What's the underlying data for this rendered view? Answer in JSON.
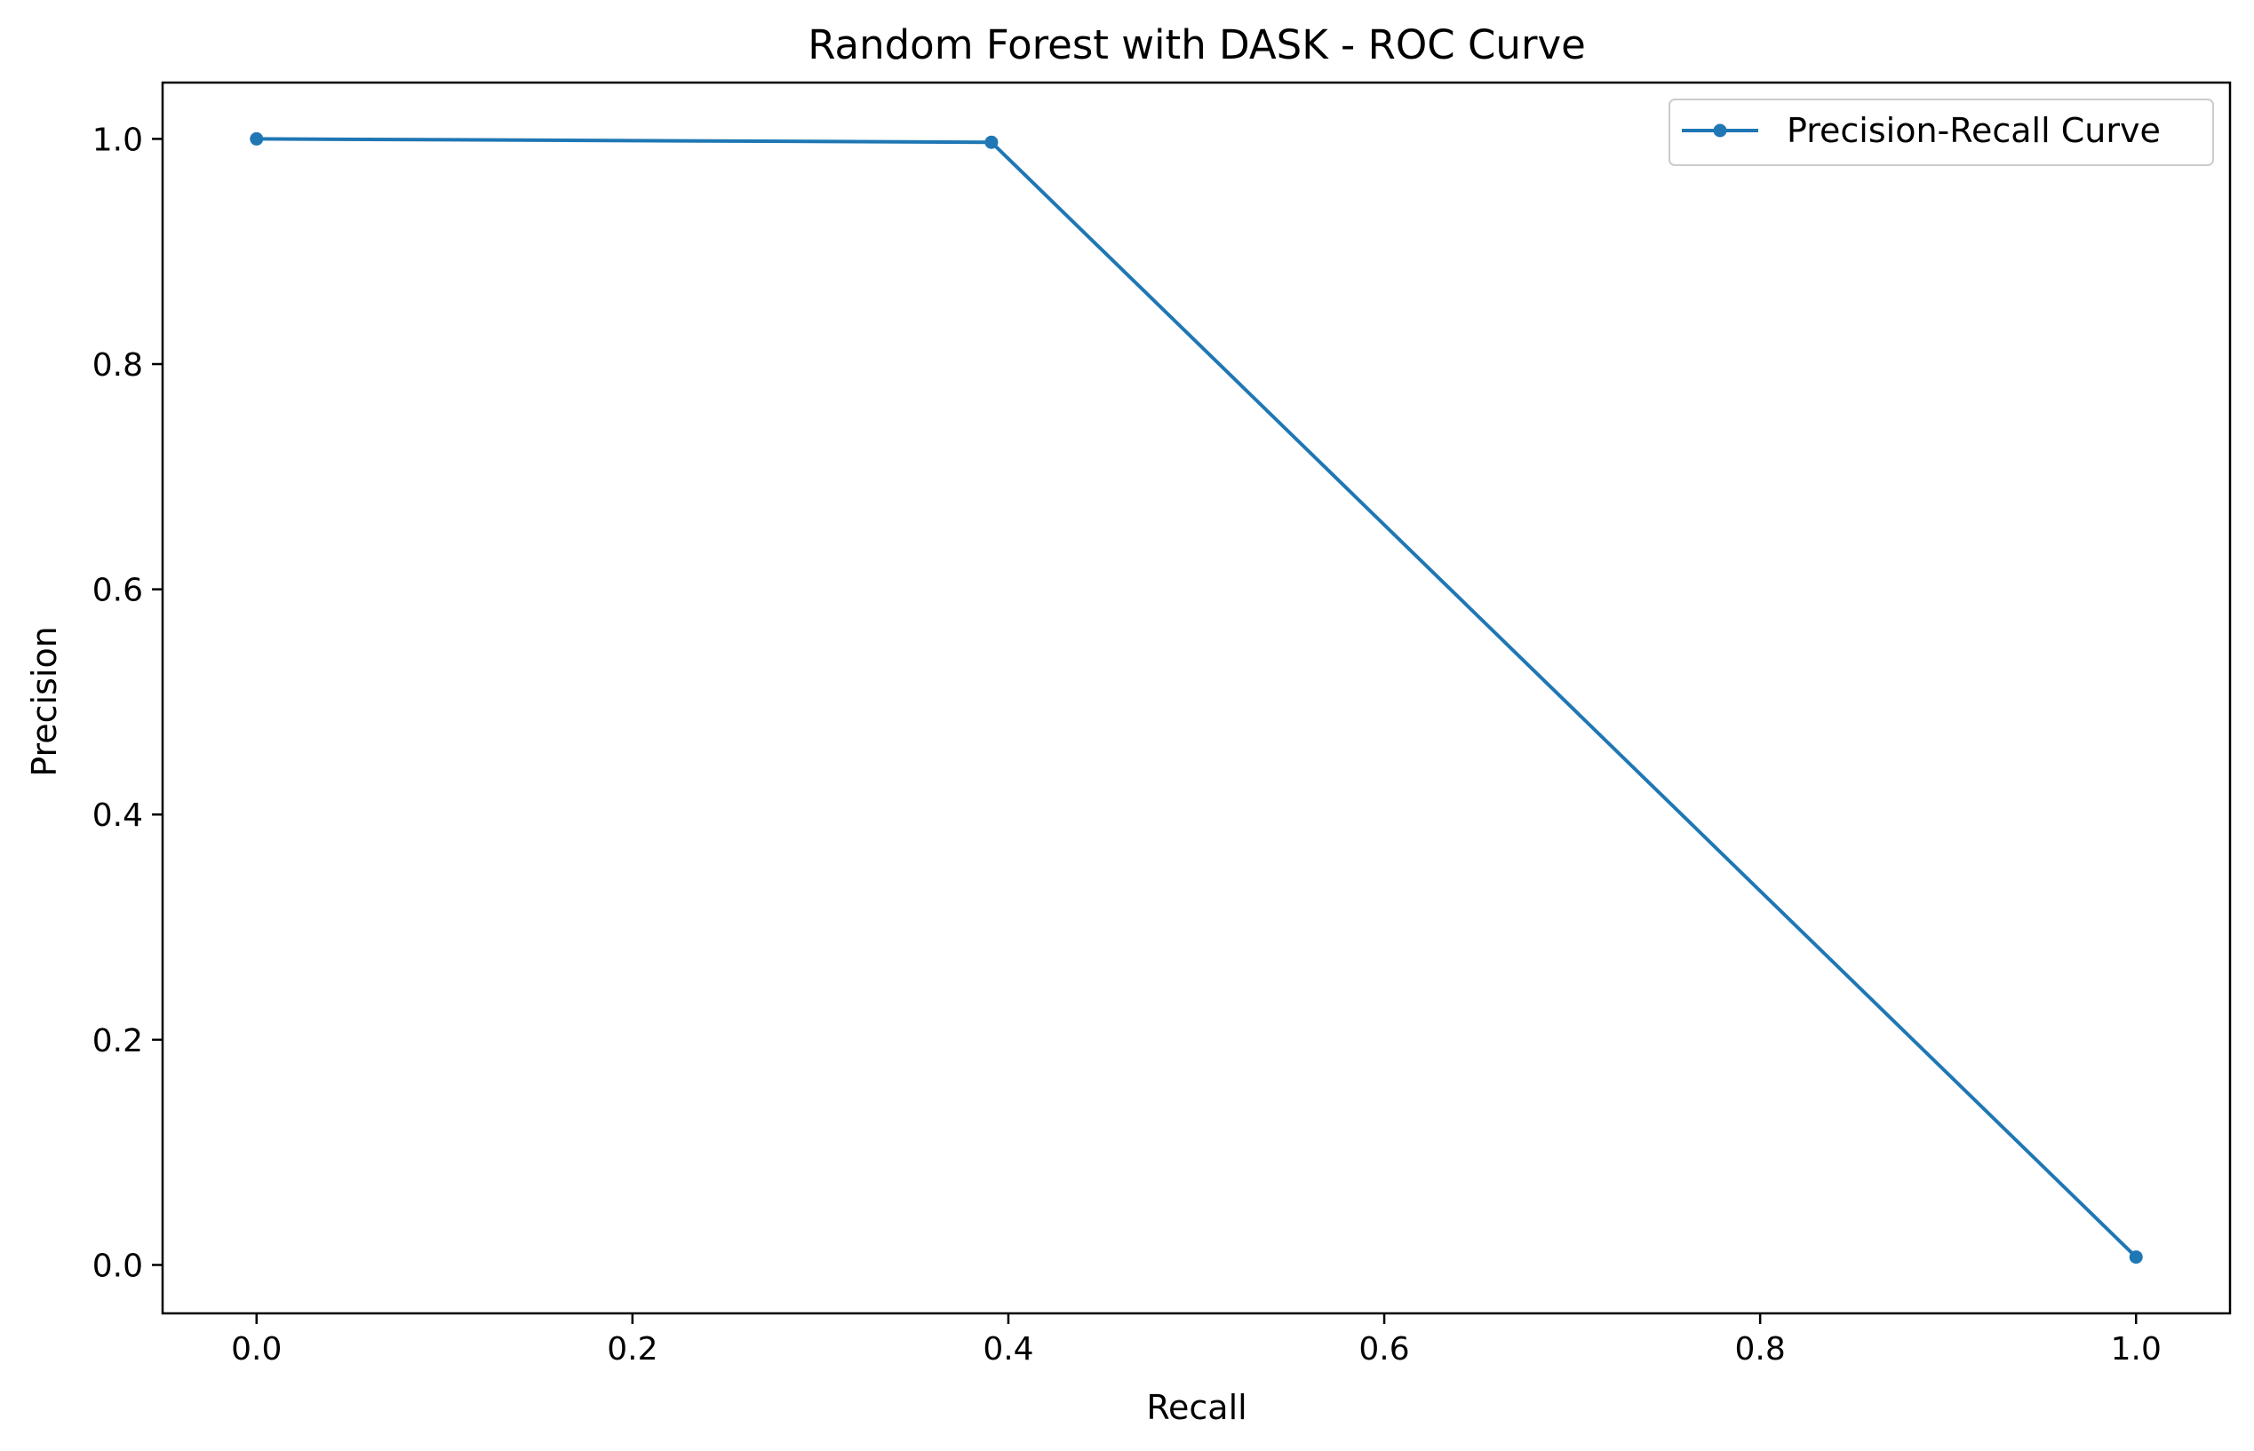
{
  "chart_data": {
    "type": "line",
    "title": "Random Forest with DASK - ROC Curve",
    "xlabel": "Recall",
    "ylabel": "Precision",
    "xlim": [
      -0.05,
      1.05
    ],
    "ylim": [
      -0.043,
      1.05
    ],
    "x_ticks": [
      0.0,
      0.2,
      0.4,
      0.6,
      0.8,
      1.0
    ],
    "y_ticks": [
      0.0,
      0.2,
      0.4,
      0.6,
      0.8,
      1.0
    ],
    "x_tick_labels": [
      "0.0",
      "0.2",
      "0.4",
      "0.6",
      "0.8",
      "1.0"
    ],
    "y_tick_labels": [
      "0.0",
      "0.2",
      "0.4",
      "0.6",
      "0.8",
      "1.0"
    ],
    "grid": false,
    "legend_position": "top-right",
    "series": [
      {
        "name": "Precision-Recall Curve",
        "color": "#1f77b4",
        "marker": "dot",
        "x": [
          0.0,
          0.391,
          1.0
        ],
        "y": [
          1.0,
          0.997,
          0.007
        ]
      }
    ]
  }
}
